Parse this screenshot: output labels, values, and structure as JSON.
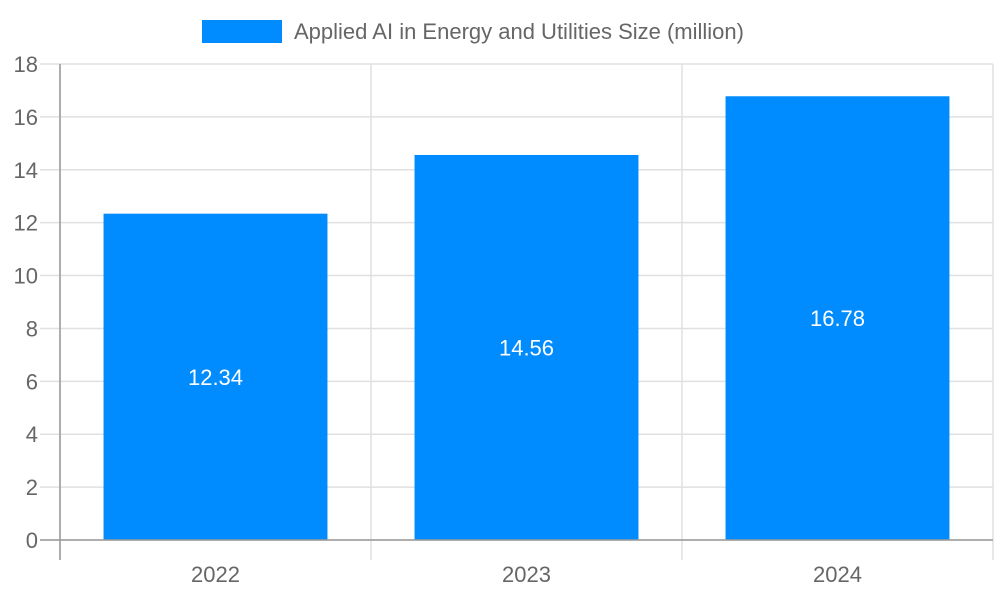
{
  "chart_data": {
    "type": "bar",
    "title": "",
    "xlabel": "",
    "ylabel": "",
    "categories": [
      "2022",
      "2023",
      "2024"
    ],
    "series": [
      {
        "name": "Applied AI in Energy and Utilities Size (million)",
        "values": [
          12.34,
          14.56,
          16.78
        ],
        "color": "#008cff"
      }
    ],
    "data_labels": [
      "12.34",
      "14.56",
      "16.78"
    ],
    "ylim": [
      0,
      18
    ],
    "yticks": [
      "0",
      "2",
      "4",
      "6",
      "8",
      "10",
      "12",
      "14",
      "16",
      "18"
    ],
    "grid": true,
    "legend": "top-center"
  }
}
